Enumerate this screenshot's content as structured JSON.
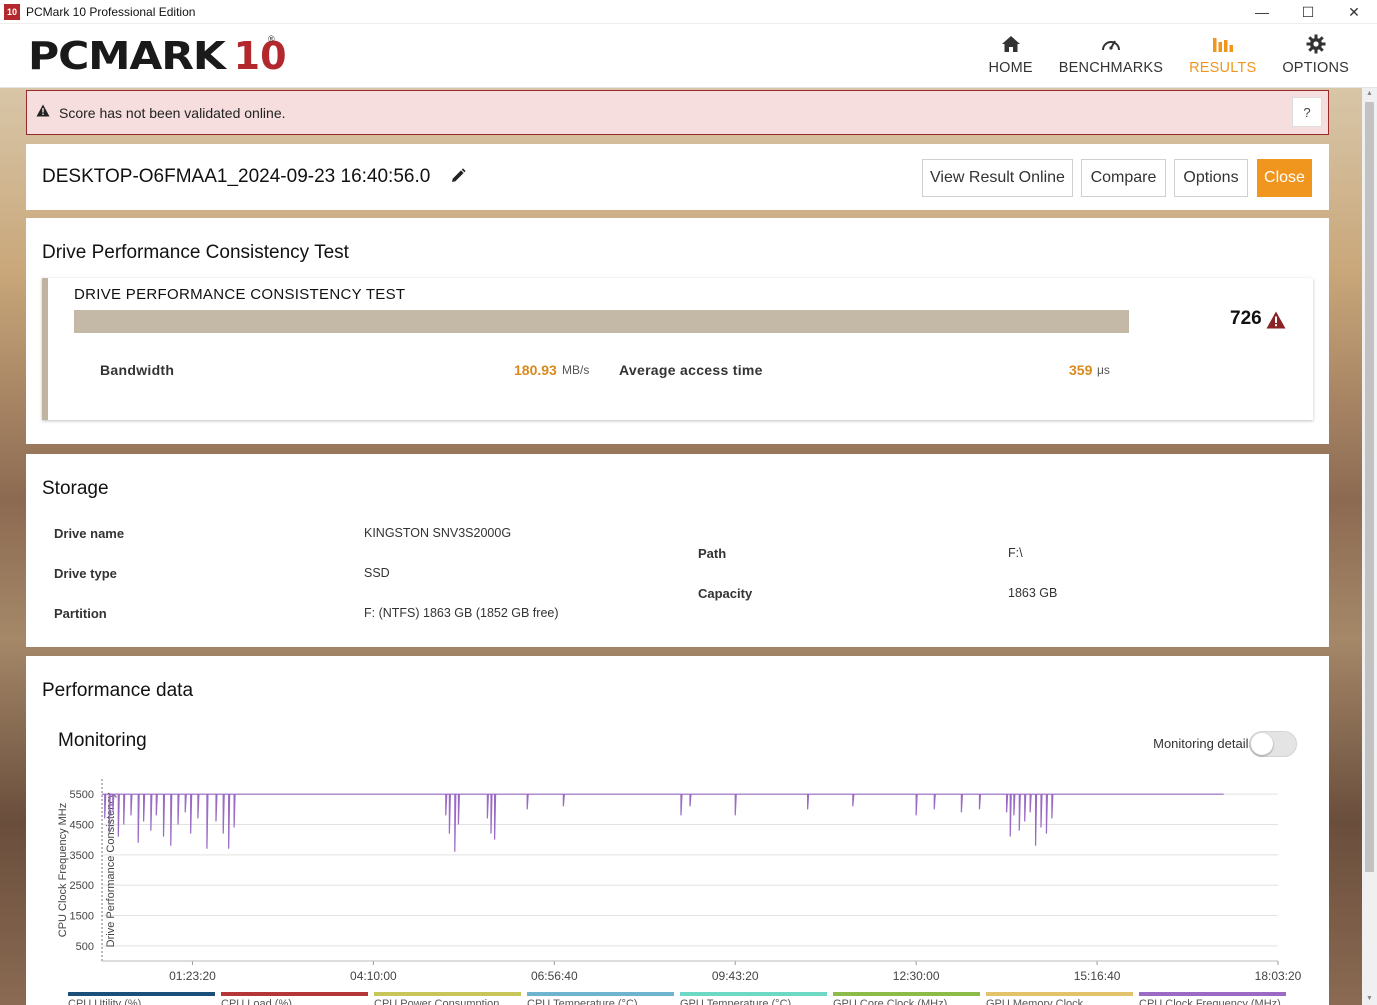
{
  "window": {
    "title": "PCMark 10 Professional Edition",
    "icon_text": "10",
    "minimize": "—",
    "maximize": "☐",
    "close": "✕"
  },
  "logo": {
    "text": "PCMARK",
    "number": "10",
    "registered": "®"
  },
  "nav": {
    "home": "HOME",
    "benchmarks": "BENCHMARKS",
    "results": "RESULTS",
    "options": "OPTIONS",
    "active": "RESULTS"
  },
  "warning": {
    "message": "Score has not been validated online.",
    "help": "?"
  },
  "result": {
    "name": "DESKTOP-O6FMAA1_2024-09-23 16:40:56.0",
    "buttons": {
      "view_online": "View Result Online",
      "compare": "Compare",
      "options": "Options",
      "close": "Close"
    }
  },
  "test_section": {
    "heading": "Drive Performance Consistency Test",
    "test_name": "DRIVE PERFORMANCE CONSISTENCY TEST",
    "score": "726",
    "bandwidth_label": "Bandwidth",
    "bandwidth_value": "180.93",
    "bandwidth_unit": "MB/s",
    "access_label": "Average access time",
    "access_value": "359",
    "access_unit": "μs"
  },
  "storage": {
    "heading": "Storage",
    "drive_name_label": "Drive name",
    "drive_name": "KINGSTON SNV3S2000G",
    "drive_type_label": "Drive type",
    "drive_type": "SSD",
    "partition_label": "Partition",
    "partition": "F: (NTFS) 1863 GB (1852 GB free)",
    "path_label": "Path",
    "path": "F:\\",
    "capacity_label": "Capacity",
    "capacity": "1863 GB"
  },
  "performance": {
    "heading": "Performance data",
    "monitoring_title": "Monitoring",
    "monitoring_details": "Monitoring details",
    "monitoring_details_on": false
  },
  "chart_data": {
    "type": "line",
    "ylabel": "CPU Clock Frequency MHz",
    "ylabel2": "Drive Performance Consistency",
    "yticks": [
      5500,
      4500,
      3500,
      2500,
      1500,
      500
    ],
    "ylim": [
      0,
      6000
    ],
    "xticks": [
      "01:23:20",
      "04:10:00",
      "06:56:40",
      "09:43:20",
      "12:30:00",
      "15:16:40",
      "18:03:20"
    ],
    "x_seconds": [
      5000,
      15000,
      25000,
      35000,
      45000,
      55000,
      65000
    ],
    "xlim": [
      0,
      65000
    ],
    "series_color": "#9b6bc4",
    "baseline": 5500,
    "dips": [
      {
        "t": 150,
        "v": 4700
      },
      {
        "t": 400,
        "v": 4200
      },
      {
        "t": 600,
        "v": 4900
      },
      {
        "t": 900,
        "v": 4100
      },
      {
        "t": 1200,
        "v": 4500
      },
      {
        "t": 1600,
        "v": 4800
      },
      {
        "t": 2000,
        "v": 3900
      },
      {
        "t": 2300,
        "v": 4600
      },
      {
        "t": 2700,
        "v": 4300
      },
      {
        "t": 3000,
        "v": 4800
      },
      {
        "t": 3400,
        "v": 4100
      },
      {
        "t": 3800,
        "v": 3800
      },
      {
        "t": 4200,
        "v": 4500
      },
      {
        "t": 4600,
        "v": 4900
      },
      {
        "t": 4900,
        "v": 4200
      },
      {
        "t": 5300,
        "v": 4700
      },
      {
        "t": 5800,
        "v": 3700
      },
      {
        "t": 6300,
        "v": 4600
      },
      {
        "t": 6700,
        "v": 4200
      },
      {
        "t": 7000,
        "v": 3700
      },
      {
        "t": 7300,
        "v": 4400
      },
      {
        "t": 19000,
        "v": 4800
      },
      {
        "t": 19200,
        "v": 4200
      },
      {
        "t": 19500,
        "v": 3600
      },
      {
        "t": 19700,
        "v": 4500
      },
      {
        "t": 21300,
        "v": 4700
      },
      {
        "t": 21500,
        "v": 4200
      },
      {
        "t": 21700,
        "v": 4000
      },
      {
        "t": 23500,
        "v": 5000
      },
      {
        "t": 25500,
        "v": 5100
      },
      {
        "t": 32000,
        "v": 4800
      },
      {
        "t": 32500,
        "v": 5100
      },
      {
        "t": 35000,
        "v": 4800
      },
      {
        "t": 39000,
        "v": 5000
      },
      {
        "t": 41500,
        "v": 5100
      },
      {
        "t": 45000,
        "v": 4800
      },
      {
        "t": 46000,
        "v": 5000
      },
      {
        "t": 47500,
        "v": 4900
      },
      {
        "t": 48500,
        "v": 5000
      },
      {
        "t": 50000,
        "v": 4900
      },
      {
        "t": 50200,
        "v": 4100
      },
      {
        "t": 50400,
        "v": 4800
      },
      {
        "t": 50700,
        "v": 4300
      },
      {
        "t": 51000,
        "v": 4600
      },
      {
        "t": 51300,
        "v": 4900
      },
      {
        "t": 51600,
        "v": 3800
      },
      {
        "t": 51900,
        "v": 4400
      },
      {
        "t": 52200,
        "v": 4200
      },
      {
        "t": 52500,
        "v": 4700
      }
    ],
    "end": 62000
  },
  "legend": [
    {
      "label": "CPU Utility (%)",
      "color": "#1c4e7a"
    },
    {
      "label": "CPU Load (%)",
      "color": "#b53636"
    },
    {
      "label": "CPU Power Consumption",
      "color": "#c6c65a"
    },
    {
      "label": "CPU Temperature (°C)",
      "color": "#6fb3cf"
    },
    {
      "label": "GPU Temperature (°C)",
      "color": "#6fd8c4"
    },
    {
      "label": "GPU Core Clock (MHz)",
      "color": "#8dbb4a"
    },
    {
      "label": "GPU Memory Clock",
      "color": "#e2c26a"
    },
    {
      "label": "CPU Clock Frequency (MHz)",
      "color": "#9b6bc4"
    }
  ]
}
